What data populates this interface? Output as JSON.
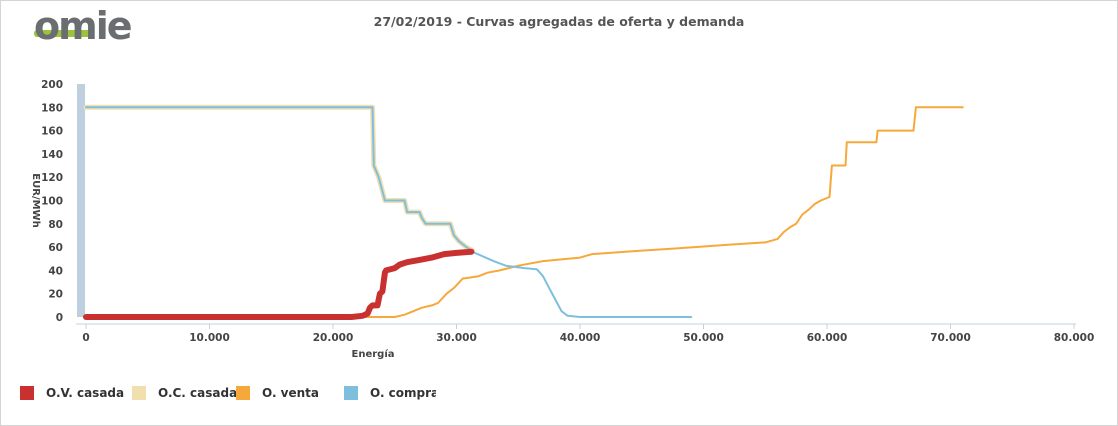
{
  "header": {
    "logo_text": "omie",
    "title": "27/02/2019 - Curvas agregadas de oferta y demanda"
  },
  "colors": {
    "ov_casada": "#c93131",
    "oc_casada": "#f2dfb0",
    "o_venta": "#f7a83a",
    "o_compra": "#7fbfde",
    "logo_grey": "#6b6e70",
    "logo_green": "#9cc33c"
  },
  "legend": [
    {
      "label": "O.V. casada",
      "color": "#c93131"
    },
    {
      "label": "O.C. casada",
      "color": "#f2dfb0"
    },
    {
      "label": "O. venta",
      "color": "#f7a83a"
    },
    {
      "label": "O. compra",
      "color": "#7fbfde"
    }
  ],
  "chart_data": {
    "type": "line",
    "title": "27/02/2019 - Curvas agregadas de oferta y demanda",
    "xlabel": "Energía",
    "ylabel": "EUR/MWh",
    "xlim": [
      0,
      80000
    ],
    "ylim": [
      0,
      200
    ],
    "x_ticks": [
      "0",
      "10.000",
      "20.000",
      "30.000",
      "40.000",
      "50.000",
      "60.000",
      "70.000",
      "80.000"
    ],
    "y_ticks": [
      "0",
      "20",
      "40",
      "60",
      "80",
      "100",
      "120",
      "140",
      "160",
      "180",
      "200"
    ],
    "grid": false,
    "legend_position": "bottom-left",
    "series": [
      {
        "name": "O.V. casada",
        "style": "thick",
        "points": [
          [
            0,
            0
          ],
          [
            21500,
            0
          ],
          [
            22400,
            1
          ],
          [
            22800,
            3
          ],
          [
            23000,
            8
          ],
          [
            23200,
            10
          ],
          [
            23600,
            10
          ],
          [
            23800,
            20
          ],
          [
            24000,
            22
          ],
          [
            24200,
            38
          ],
          [
            24300,
            40
          ],
          [
            25000,
            42
          ],
          [
            25400,
            45
          ],
          [
            26000,
            47
          ],
          [
            27000,
            49
          ],
          [
            28000,
            51
          ],
          [
            29000,
            54
          ],
          [
            30000,
            55
          ],
          [
            31200,
            56
          ]
        ]
      },
      {
        "name": "O.C. casada",
        "style": "thick",
        "points": [
          [
            0,
            180
          ],
          [
            23200,
            180
          ],
          [
            23300,
            130
          ],
          [
            23700,
            120
          ],
          [
            24200,
            100
          ],
          [
            25800,
            100
          ],
          [
            26000,
            90
          ],
          [
            27000,
            90
          ],
          [
            27200,
            85
          ],
          [
            27500,
            80
          ],
          [
            29500,
            80
          ],
          [
            29800,
            70
          ],
          [
            30200,
            65
          ],
          [
            30800,
            60
          ],
          [
            31300,
            57
          ]
        ]
      },
      {
        "name": "O. venta",
        "style": "thin",
        "points": [
          [
            0,
            0
          ],
          [
            20500,
            0
          ],
          [
            21500,
            0
          ],
          [
            25000,
            0
          ],
          [
            25800,
            2
          ],
          [
            26500,
            5
          ],
          [
            27200,
            8
          ],
          [
            28000,
            10
          ],
          [
            28500,
            12
          ],
          [
            29200,
            20
          ],
          [
            29800,
            25
          ],
          [
            30500,
            33
          ],
          [
            31800,
            35
          ],
          [
            32500,
            38
          ],
          [
            33500,
            40
          ],
          [
            35000,
            44
          ],
          [
            37000,
            48
          ],
          [
            40000,
            51
          ],
          [
            41000,
            54
          ],
          [
            45000,
            57
          ],
          [
            48000,
            59
          ],
          [
            52000,
            62
          ],
          [
            55000,
            64
          ],
          [
            56000,
            67
          ],
          [
            56500,
            73
          ],
          [
            57000,
            77
          ],
          [
            57500,
            80
          ],
          [
            58000,
            88
          ],
          [
            58500,
            92
          ],
          [
            59000,
            97
          ],
          [
            59500,
            100
          ],
          [
            60200,
            103
          ],
          [
            60400,
            130
          ],
          [
            61500,
            130
          ],
          [
            61600,
            150
          ],
          [
            64000,
            150
          ],
          [
            64100,
            160
          ],
          [
            67000,
            160
          ],
          [
            67200,
            180
          ],
          [
            71000,
            180
          ]
        ]
      },
      {
        "name": "O. compra",
        "style": "thin",
        "points": [
          [
            0,
            180
          ],
          [
            23200,
            180
          ],
          [
            23300,
            130
          ],
          [
            23700,
            120
          ],
          [
            24200,
            100
          ],
          [
            25800,
            100
          ],
          [
            26000,
            90
          ],
          [
            27000,
            90
          ],
          [
            27200,
            85
          ],
          [
            27500,
            80
          ],
          [
            29500,
            80
          ],
          [
            29800,
            70
          ],
          [
            30200,
            65
          ],
          [
            30800,
            60
          ],
          [
            31500,
            55
          ],
          [
            33000,
            48
          ],
          [
            34000,
            44
          ],
          [
            35500,
            42
          ],
          [
            36500,
            41
          ],
          [
            37000,
            35
          ],
          [
            37500,
            25
          ],
          [
            38000,
            15
          ],
          [
            38500,
            5
          ],
          [
            39000,
            1
          ],
          [
            40000,
            0
          ],
          [
            49000,
            0
          ]
        ]
      }
    ]
  }
}
